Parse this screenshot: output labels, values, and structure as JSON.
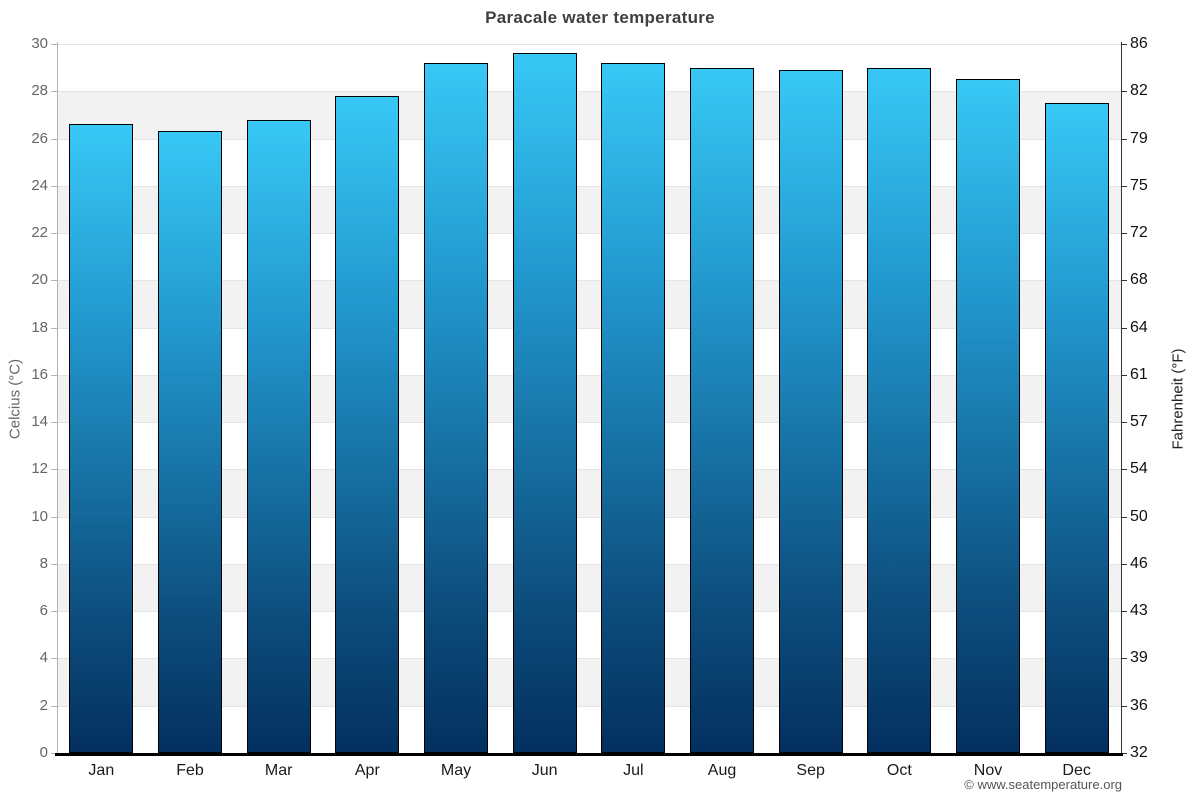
{
  "title": "Paracale water temperature",
  "footer": {
    "text": "© www.seatemperature.org"
  },
  "chart_data": {
    "type": "bar",
    "title": "Paracale water temperature",
    "categories": [
      "Jan",
      "Feb",
      "Mar",
      "Apr",
      "May",
      "Jun",
      "Jul",
      "Aug",
      "Sep",
      "Oct",
      "Nov",
      "Dec"
    ],
    "series": [
      {
        "name": "Water temperature (°C)",
        "values": [
          26.6,
          26.3,
          26.8,
          27.8,
          29.2,
          29.6,
          29.2,
          29.0,
          28.9,
          29.0,
          28.5,
          27.5
        ]
      }
    ],
    "xlabel": "",
    "ylabel_left": "Celcius (°C)",
    "ylabel_right": "Fahrenheit (°F)",
    "ylim": [
      0,
      30
    ],
    "ytick_step_celsius": 2,
    "yticks_left": [
      "0",
      "2",
      "4",
      "6",
      "8",
      "10",
      "12",
      "14",
      "16",
      "18",
      "20",
      "22",
      "24",
      "26",
      "28",
      "30"
    ],
    "yticks_right": [
      "32",
      "36",
      "39",
      "43",
      "46",
      "50",
      "54",
      "57",
      "61",
      "64",
      "68",
      "72",
      "75",
      "79",
      "82",
      "86"
    ],
    "grid": "alternating horizontal bands every 2°C",
    "legend": "none",
    "colors": {
      "bar_gradient_top": "#38c8f5",
      "bar_gradient_mid": "#2196cc",
      "bar_gradient_deep": "#0d4e7e",
      "bar_gradient_bottom": "#03305e",
      "bar_border": "#000000",
      "band_alt": "#f2f2f2",
      "gridline": "#e4e4e4",
      "axis_left": "#b3b3b3",
      "axis_right": "#333333",
      "axis_bottom": "#000000",
      "tick_label_left": "#666666",
      "tick_label_right": "#111111",
      "ylabel_left_color": "#666666",
      "ylabel_right_color": "#222222",
      "title_color": "#404040"
    }
  }
}
